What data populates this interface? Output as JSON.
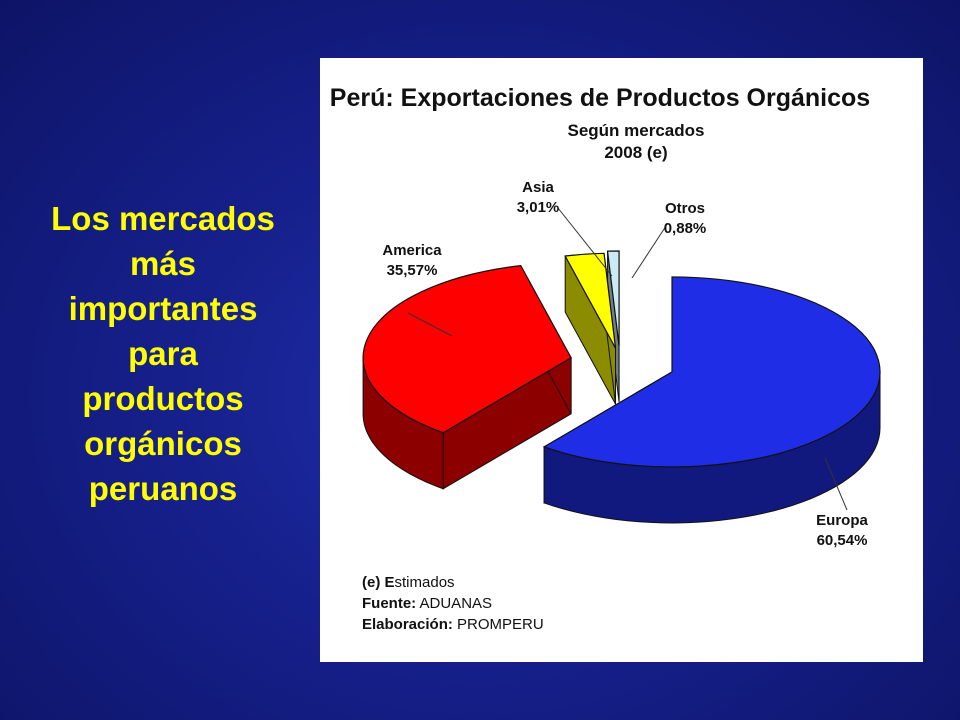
{
  "slide": {
    "text": "Los mercados\nmás\nimportantes\npara\nproductos\norgánicos\nperuanos"
  },
  "colors": {
    "background": "#16208c",
    "slide_text": "#ffff00",
    "Europa": "#1f2ee6",
    "America": "#ff0000",
    "Asia": "#ffff00",
    "Otros": "#cce9f6"
  },
  "chart_data": {
    "type": "pie",
    "title": "Perú: Exportaciones de Productos Orgánicos",
    "subtitle": "Según mercados",
    "subtitle2": "2008 (e)",
    "slices": [
      {
        "name": "Europa",
        "value": 60.54,
        "label": "60,54%"
      },
      {
        "name": "America",
        "value": 35.57,
        "label": "35,57%"
      },
      {
        "name": "Asia",
        "value": 3.01,
        "label": "3,01%"
      },
      {
        "name": "Otros",
        "value": 0.88,
        "label": "0,88%"
      }
    ],
    "exploded": true,
    "style": "3d"
  },
  "footnotes": {
    "estimados_key": "(e) E",
    "estimados_rest": "stimados",
    "fuente_key": "Fuente:",
    "fuente_val": "ADUANAS",
    "elab_key": "Elaboración:",
    "elab_val": "PROMPERU"
  }
}
